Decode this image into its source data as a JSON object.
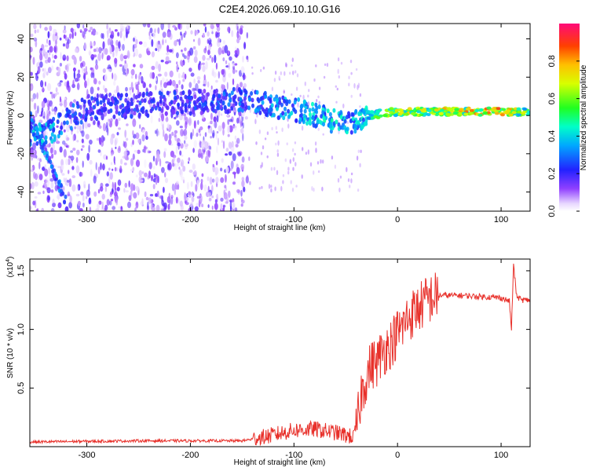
{
  "title": "C2E4.2026.069.10.10.G16",
  "colors": {
    "snr_line": "#e8302a",
    "spectrogram_scatter": "#7a2be6",
    "background": "#ffffff"
  },
  "chart_data": [
    {
      "type": "heatmap",
      "xlabel": "Height of straight line (km)",
      "ylabel": "Frequency (Hz)",
      "xlim": [
        -355,
        128
      ],
      "ylim": [
        -50,
        48
      ],
      "xticks": [
        -300,
        -200,
        -100,
        0,
        100
      ],
      "yticks": [
        -40,
        -20,
        0,
        20,
        40
      ],
      "colorbar": {
        "label": "Normalized spectral amplitude",
        "range": [
          0.0,
          1.0
        ],
        "ticks": [
          "0.0",
          "0.2",
          "0.4",
          "0.6",
          "0.8"
        ],
        "tick_values": [
          0.0,
          0.2,
          0.4,
          0.6,
          0.8
        ]
      },
      "ridge": {
        "description_points": [
          {
            "x": -340,
            "freq": -10,
            "amp": 0.4
          },
          {
            "x": -300,
            "freq": 4,
            "amp": 0.25
          },
          {
            "x": -200,
            "freq": 7,
            "amp": 0.25
          },
          {
            "x": -150,
            "freq": 8,
            "amp": 0.3
          },
          {
            "x": -100,
            "freq": 3,
            "amp": 0.4
          },
          {
            "x": -60,
            "freq": -3,
            "amp": 0.45
          },
          {
            "x": -40,
            "freq": -3,
            "amp": 0.4
          },
          {
            "x": -30,
            "freq": 0,
            "amp": 0.5
          },
          {
            "x": 0,
            "freq": 2,
            "amp": 0.7
          },
          {
            "x": 50,
            "freq": 2,
            "amp": 0.75
          },
          {
            "x": 100,
            "freq": 2,
            "amp": 0.85
          },
          {
            "x": 128,
            "freq": 2,
            "amp": 0.6
          }
        ],
        "diagonal_branch": {
          "x": [
            -355,
            -320
          ],
          "freq": [
            0,
            -45
          ]
        }
      }
    },
    {
      "type": "line",
      "xlabel": "Height of straight line (km)",
      "ylabel": "SNR (10 * v/v)",
      "yscale_label": "(x10",
      "yscale_exp": "4",
      "yscale_close": ")",
      "xlim": [
        -355,
        128
      ],
      "ylim": [
        0,
        1.6
      ],
      "xticks": [
        -300,
        -200,
        -100,
        0,
        100
      ],
      "yticks": [
        "0.5",
        "1.0",
        "1.5"
      ],
      "ytick_values": [
        0.5,
        1.0,
        1.5
      ],
      "series": [
        {
          "name": "SNR",
          "x": [
            -355,
            -250,
            -150,
            -130,
            -100,
            -80,
            -60,
            -42,
            -38,
            -35,
            -30,
            -25,
            -20,
            -15,
            -10,
            -5,
            0,
            5,
            10,
            20,
            30,
            40,
            60,
            80,
            100,
            108,
            110,
            112,
            115,
            120,
            128
          ],
          "y": [
            0.04,
            0.05,
            0.05,
            0.08,
            0.14,
            0.15,
            0.12,
            0.08,
            0.25,
            0.45,
            0.6,
            0.7,
            0.72,
            0.8,
            0.85,
            0.9,
            0.97,
            1.02,
            1.1,
            1.18,
            1.26,
            1.29,
            1.29,
            1.28,
            1.27,
            1.24,
            1.0,
            1.55,
            1.28,
            1.25,
            1.25
          ]
        }
      ]
    }
  ]
}
